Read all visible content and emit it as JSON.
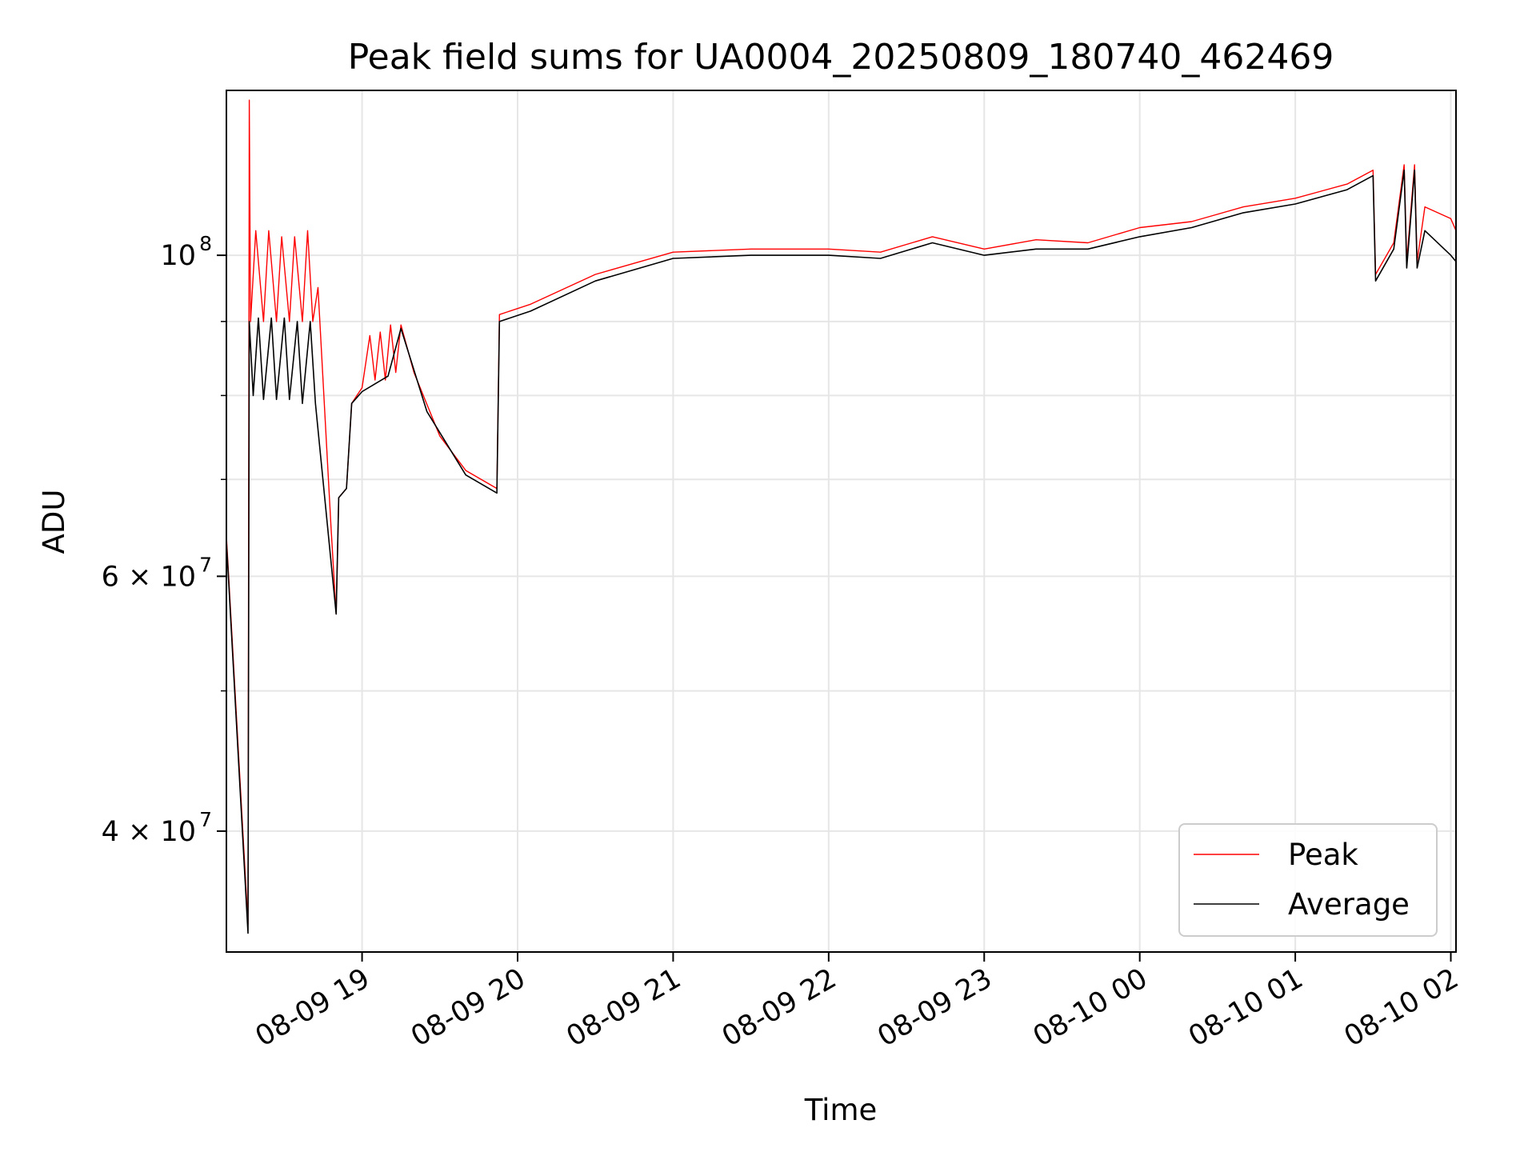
{
  "chart_data": {
    "type": "line",
    "title": "Peak field sums for UA0004_20250809_180740_462469",
    "xlabel": "Time",
    "ylabel": "ADU",
    "yscale": "log",
    "grid": true,
    "legend_position": "lower-right",
    "xlim": [
      "2025-08-09 18:07:40",
      "2025-08-10 02:02:00"
    ],
    "ylim": [
      33000000,
      130000000
    ],
    "x_ticks": [
      {
        "t": "2025-08-09 19:00",
        "label": "08-09 19"
      },
      {
        "t": "2025-08-09 20:00",
        "label": "08-09 20"
      },
      {
        "t": "2025-08-09 21:00",
        "label": "08-09 21"
      },
      {
        "t": "2025-08-09 22:00",
        "label": "08-09 22"
      },
      {
        "t": "2025-08-09 23:00",
        "label": "08-09 23"
      },
      {
        "t": "2025-08-10 00:00",
        "label": "08-10 00"
      },
      {
        "t": "2025-08-10 01:00",
        "label": "08-10 01"
      },
      {
        "t": "2025-08-10 02:00",
        "label": "08-10 02"
      }
    ],
    "y_ticks": [
      {
        "value": 40000000,
        "label": "4 × 10",
        "exp": "7"
      },
      {
        "value": 60000000,
        "label": "6 × 10",
        "exp": "7"
      },
      {
        "value": 100000000,
        "label": "10",
        "exp": "8"
      }
    ],
    "y_minor_ticks": [
      50000000,
      70000000,
      80000000,
      90000000
    ],
    "series": [
      {
        "name": "Peak",
        "color": "#ff0000",
        "points": [
          [
            "2025-08-09 18:07:40",
            64000000
          ],
          [
            "2025-08-09 18:16:00",
            34500000
          ],
          [
            "2025-08-09 18:16:30",
            128000000
          ],
          [
            "2025-08-09 18:17:00",
            90000000
          ],
          [
            "2025-08-09 18:19:00",
            104000000
          ],
          [
            "2025-08-09 18:22:00",
            90000000
          ],
          [
            "2025-08-09 18:24:00",
            104000000
          ],
          [
            "2025-08-09 18:27:00",
            90000000
          ],
          [
            "2025-08-09 18:29:00",
            103000000
          ],
          [
            "2025-08-09 18:32:00",
            90000000
          ],
          [
            "2025-08-09 18:34:00",
            103000000
          ],
          [
            "2025-08-09 18:37:00",
            90000000
          ],
          [
            "2025-08-09 18:39:00",
            104000000
          ],
          [
            "2025-08-09 18:41:00",
            90000000
          ],
          [
            "2025-08-09 18:43:00",
            95000000
          ],
          [
            "2025-08-09 18:48:00",
            65000000
          ],
          [
            "2025-08-09 18:50:00",
            56500000
          ],
          [
            "2025-08-09 18:51:00",
            68000000
          ],
          [
            "2025-08-09 18:54:00",
            69000000
          ],
          [
            "2025-08-09 18:56:00",
            79000000
          ],
          [
            "2025-08-09 18:58:00",
            80000000
          ],
          [
            "2025-08-09 19:00:00",
            81000000
          ],
          [
            "2025-08-09 19:03:00",
            88000000
          ],
          [
            "2025-08-09 19:05:00",
            82000000
          ],
          [
            "2025-08-09 19:07:00",
            88500000
          ],
          [
            "2025-08-09 19:09:00",
            82000000
          ],
          [
            "2025-08-09 19:11:00",
            89500000
          ],
          [
            "2025-08-09 19:13:00",
            83000000
          ],
          [
            "2025-08-09 19:15:00",
            89500000
          ],
          [
            "2025-08-09 19:20:00",
            83000000
          ],
          [
            "2025-08-09 19:30:00",
            75000000
          ],
          [
            "2025-08-09 19:40:00",
            71000000
          ],
          [
            "2025-08-09 19:52:00",
            69000000
          ],
          [
            "2025-08-09 19:53:00",
            91000000
          ],
          [
            "2025-08-09 20:05:00",
            92500000
          ],
          [
            "2025-08-09 20:30:00",
            97000000
          ],
          [
            "2025-08-09 21:00:00",
            100500000
          ],
          [
            "2025-08-09 21:30:00",
            101000000
          ],
          [
            "2025-08-09 22:00:00",
            101000000
          ],
          [
            "2025-08-09 22:20:00",
            100500000
          ],
          [
            "2025-08-09 22:40:00",
            103000000
          ],
          [
            "2025-08-09 23:00:00",
            101000000
          ],
          [
            "2025-08-09 23:20:00",
            102500000
          ],
          [
            "2025-08-09 23:40:00",
            102000000
          ],
          [
            "2025-08-10 00:00:00",
            104500000
          ],
          [
            "2025-08-10 00:20:00",
            105500000
          ],
          [
            "2025-08-10 00:40:00",
            108000000
          ],
          [
            "2025-08-10 01:00:00",
            109500000
          ],
          [
            "2025-08-10 01:20:00",
            112000000
          ],
          [
            "2025-08-10 01:30:00",
            114500000
          ],
          [
            "2025-08-10 01:31:00",
            97000000
          ],
          [
            "2025-08-10 01:38:00",
            102000000
          ],
          [
            "2025-08-10 01:42:00",
            115500000
          ],
          [
            "2025-08-10 01:43:00",
            99000000
          ],
          [
            "2025-08-10 01:46:00",
            115500000
          ],
          [
            "2025-08-10 01:47:00",
            99000000
          ],
          [
            "2025-08-10 01:50:00",
            108000000
          ],
          [
            "2025-08-10 02:00:00",
            106000000
          ],
          [
            "2025-08-10 02:02:00",
            104000000
          ]
        ]
      },
      {
        "name": "Average",
        "color": "#000000",
        "points": [
          [
            "2025-08-09 18:07:40",
            63500000
          ],
          [
            "2025-08-09 18:16:00",
            34000000
          ],
          [
            "2025-08-09 18:16:30",
            90000000
          ],
          [
            "2025-08-09 18:18:00",
            80000000
          ],
          [
            "2025-08-09 18:20:00",
            90500000
          ],
          [
            "2025-08-09 18:22:00",
            79500000
          ],
          [
            "2025-08-09 18:25:00",
            90500000
          ],
          [
            "2025-08-09 18:27:00",
            79500000
          ],
          [
            "2025-08-09 18:30:00",
            90500000
          ],
          [
            "2025-08-09 18:32:00",
            79500000
          ],
          [
            "2025-08-09 18:35:00",
            90000000
          ],
          [
            "2025-08-09 18:37:00",
            79000000
          ],
          [
            "2025-08-09 18:40:00",
            90000000
          ],
          [
            "2025-08-09 18:42:00",
            79000000
          ],
          [
            "2025-08-09 18:50:00",
            56500000
          ],
          [
            "2025-08-09 18:51:00",
            68000000
          ],
          [
            "2025-08-09 18:54:00",
            69000000
          ],
          [
            "2025-08-09 18:56:00",
            79000000
          ],
          [
            "2025-08-09 19:00:00",
            80500000
          ],
          [
            "2025-08-09 19:05:00",
            81500000
          ],
          [
            "2025-08-09 19:10:00",
            82500000
          ],
          [
            "2025-08-09 19:15:00",
            89000000
          ],
          [
            "2025-08-09 19:25:00",
            78000000
          ],
          [
            "2025-08-09 19:40:00",
            70500000
          ],
          [
            "2025-08-09 19:52:00",
            68500000
          ],
          [
            "2025-08-09 19:53:00",
            90000000
          ],
          [
            "2025-08-09 20:05:00",
            91500000
          ],
          [
            "2025-08-09 20:30:00",
            96000000
          ],
          [
            "2025-08-09 21:00:00",
            99500000
          ],
          [
            "2025-08-09 21:30:00",
            100000000
          ],
          [
            "2025-08-09 22:00:00",
            100000000
          ],
          [
            "2025-08-09 22:20:00",
            99500000
          ],
          [
            "2025-08-09 22:40:00",
            102000000
          ],
          [
            "2025-08-09 23:00:00",
            100000000
          ],
          [
            "2025-08-09 23:20:00",
            101000000
          ],
          [
            "2025-08-09 23:40:00",
            101000000
          ],
          [
            "2025-08-10 00:00:00",
            103000000
          ],
          [
            "2025-08-10 00:20:00",
            104500000
          ],
          [
            "2025-08-10 00:40:00",
            107000000
          ],
          [
            "2025-08-10 01:00:00",
            108500000
          ],
          [
            "2025-08-10 01:20:00",
            111000000
          ],
          [
            "2025-08-10 01:30:00",
            113500000
          ],
          [
            "2025-08-10 01:31:00",
            96000000
          ],
          [
            "2025-08-10 01:38:00",
            101000000
          ],
          [
            "2025-08-10 01:42:00",
            114500000
          ],
          [
            "2025-08-10 01:43:00",
            98000000
          ],
          [
            "2025-08-10 01:46:00",
            114500000
          ],
          [
            "2025-08-10 01:47:00",
            98000000
          ],
          [
            "2025-08-10 01:50:00",
            104000000
          ],
          [
            "2025-08-10 02:00:00",
            100000000
          ],
          [
            "2025-08-10 02:02:00",
            99000000
          ]
        ]
      }
    ]
  }
}
